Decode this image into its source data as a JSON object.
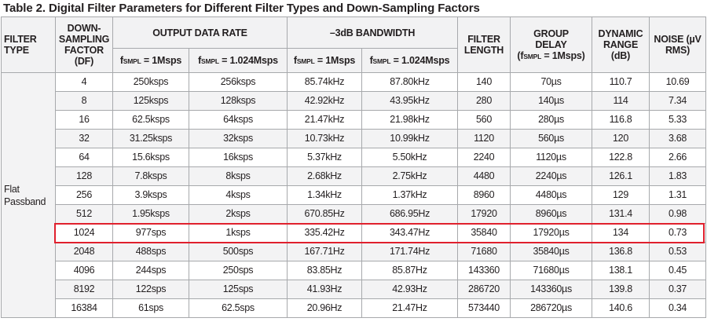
{
  "title": "Table 2. Digital Filter Parameters for Different Filter Types and Down-Sampling Factors",
  "headers": {
    "filter_type": [
      "FILTER",
      "TYPE"
    ],
    "df": [
      "DOWN-",
      "SAMPLING",
      "FACTOR",
      "(DF)"
    ],
    "output_data_rate": "OUTPUT DATA RATE",
    "bandwidth": "–3dB BANDWIDTH",
    "f_label": "f",
    "f_sub": "SMPL",
    "f1": " = 1Msps",
    "f2": " = 1.024Msps",
    "filter_length": [
      "FILTER",
      "LENGTH"
    ],
    "group_delay": [
      "GROUP",
      "DELAY",
      "(f",
      "SMPL",
      " = 1Msps)"
    ],
    "dynamic_range": [
      "DYNAMIC",
      "RANGE",
      "(dB)"
    ],
    "noise": [
      "NOISE (µV",
      "RMS)"
    ]
  },
  "filter_type": [
    "Flat",
    "Passband"
  ],
  "rows": [
    [
      "4",
      "250ksps",
      "256ksps",
      "85.74kHz",
      "87.80kHz",
      "140",
      "70µs",
      "110.7",
      "10.69"
    ],
    [
      "8",
      "125ksps",
      "128ksps",
      "42.92kHz",
      "43.95kHz",
      "280",
      "140µs",
      "114",
      "7.34"
    ],
    [
      "16",
      "62.5ksps",
      "64ksps",
      "21.47kHz",
      "21.98kHz",
      "560",
      "280µs",
      "116.8",
      "5.33"
    ],
    [
      "32",
      "31.25ksps",
      "32ksps",
      "10.73kHz",
      "10.99kHz",
      "1120",
      "560µs",
      "120",
      "3.68"
    ],
    [
      "64",
      "15.6ksps",
      "16ksps",
      "5.37kHz",
      "5.50kHz",
      "2240",
      "1120µs",
      "122.8",
      "2.66"
    ],
    [
      "128",
      "7.8ksps",
      "8ksps",
      "2.68kHz",
      "2.75kHz",
      "4480",
      "2240µs",
      "126.1",
      "1.83"
    ],
    [
      "256",
      "3.9ksps",
      "4ksps",
      "1.34kHz",
      "1.37kHz",
      "8960",
      "4480µs",
      "129",
      "1.31"
    ],
    [
      "512",
      "1.95ksps",
      "2ksps",
      "670.85Hz",
      "686.95Hz",
      "17920",
      "8960µs",
      "131.4",
      "0.98"
    ],
    [
      "1024",
      "977sps",
      "1ksps",
      "335.42Hz",
      "343.47Hz",
      "35840",
      "17920µs",
      "134",
      "0.73"
    ],
    [
      "2048",
      "488sps",
      "500sps",
      "167.71Hz",
      "171.74Hz",
      "71680",
      "35840µs",
      "136.8",
      "0.53"
    ],
    [
      "4096",
      "244sps",
      "250sps",
      "83.85Hz",
      "85.87Hz",
      "143360",
      "71680µs",
      "138.1",
      "0.45"
    ],
    [
      "8192",
      "122sps",
      "125sps",
      "41.93Hz",
      "42.93Hz",
      "286720",
      "143360µs",
      "139.8",
      "0.37"
    ],
    [
      "16384",
      "61sps",
      "62.5sps",
      "20.96Hz",
      "21.47Hz",
      "573440",
      "286720µs",
      "140.6",
      "0.34"
    ]
  ],
  "highlight_row": 8,
  "colors": {
    "highlight": "#e0202d",
    "border": "#a7a9ac",
    "header_bg": "#f2f2f3",
    "alt_row": "#f3f3f4"
  }
}
